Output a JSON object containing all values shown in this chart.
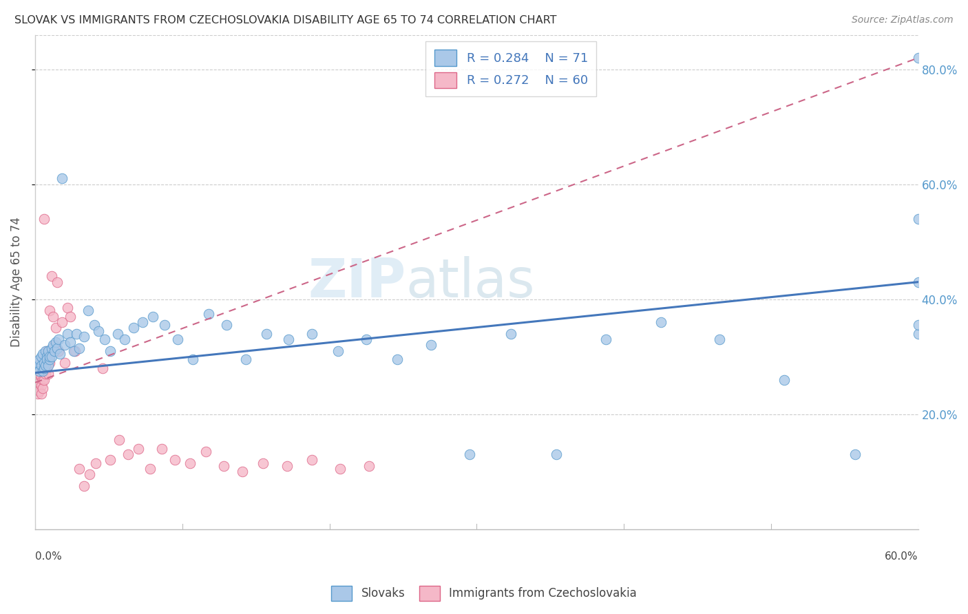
{
  "title": "SLOVAK VS IMMIGRANTS FROM CZECHOSLOVAKIA DISABILITY AGE 65 TO 74 CORRELATION CHART",
  "source": "Source: ZipAtlas.com",
  "ylabel": "Disability Age 65 to 74",
  "xlim": [
    0.0,
    0.6
  ],
  "ylim": [
    0.0,
    0.86
  ],
  "ytick_vals": [
    0.2,
    0.4,
    0.6,
    0.8
  ],
  "ytick_labels": [
    "20.0%",
    "40.0%",
    "60.0%",
    "80.0%"
  ],
  "legend_r1": "R = 0.284",
  "legend_n1": "N = 71",
  "legend_r2": "R = 0.272",
  "legend_n2": "N = 60",
  "color_slovak_fill": "#aac8e8",
  "color_slovak_edge": "#5599cc",
  "color_immig_fill": "#f5b8c8",
  "color_immig_edge": "#dd6688",
  "line_color_slovak": "#4477bb",
  "line_color_immig": "#cc6688",
  "watermark_zip": "ZIP",
  "watermark_atlas": "atlas",
  "slovak_x": [
    0.001,
    0.002,
    0.002,
    0.003,
    0.003,
    0.004,
    0.004,
    0.005,
    0.005,
    0.006,
    0.006,
    0.007,
    0.007,
    0.008,
    0.008,
    0.009,
    0.009,
    0.01,
    0.01,
    0.011,
    0.011,
    0.012,
    0.013,
    0.014,
    0.015,
    0.016,
    0.017,
    0.018,
    0.02,
    0.022,
    0.024,
    0.026,
    0.028,
    0.03,
    0.033,
    0.036,
    0.04,
    0.043,
    0.047,
    0.051,
    0.056,
    0.061,
    0.067,
    0.073,
    0.08,
    0.088,
    0.097,
    0.107,
    0.118,
    0.13,
    0.143,
    0.157,
    0.172,
    0.188,
    0.206,
    0.225,
    0.246,
    0.269,
    0.295,
    0.323,
    0.354,
    0.388,
    0.425,
    0.465,
    0.509,
    0.557,
    0.6,
    0.6,
    0.6,
    0.6,
    0.6
  ],
  "slovak_y": [
    0.285,
    0.28,
    0.29,
    0.275,
    0.295,
    0.285,
    0.3,
    0.275,
    0.305,
    0.28,
    0.29,
    0.31,
    0.285,
    0.3,
    0.295,
    0.285,
    0.31,
    0.295,
    0.3,
    0.315,
    0.3,
    0.32,
    0.31,
    0.325,
    0.315,
    0.33,
    0.305,
    0.61,
    0.32,
    0.34,
    0.325,
    0.31,
    0.34,
    0.315,
    0.335,
    0.38,
    0.355,
    0.345,
    0.33,
    0.31,
    0.34,
    0.33,
    0.35,
    0.36,
    0.37,
    0.355,
    0.33,
    0.295,
    0.375,
    0.355,
    0.295,
    0.34,
    0.33,
    0.34,
    0.31,
    0.33,
    0.295,
    0.32,
    0.13,
    0.34,
    0.13,
    0.33,
    0.36,
    0.33,
    0.26,
    0.13,
    0.82,
    0.54,
    0.34,
    0.355,
    0.43
  ],
  "immig_x": [
    0.001,
    0.001,
    0.001,
    0.001,
    0.002,
    0.002,
    0.002,
    0.002,
    0.003,
    0.003,
    0.003,
    0.004,
    0.004,
    0.004,
    0.005,
    0.005,
    0.005,
    0.006,
    0.006,
    0.006,
    0.007,
    0.007,
    0.008,
    0.008,
    0.009,
    0.009,
    0.01,
    0.01,
    0.011,
    0.012,
    0.013,
    0.014,
    0.015,
    0.016,
    0.018,
    0.02,
    0.022,
    0.024,
    0.027,
    0.03,
    0.033,
    0.037,
    0.041,
    0.046,
    0.051,
    0.057,
    0.063,
    0.07,
    0.078,
    0.086,
    0.095,
    0.105,
    0.116,
    0.128,
    0.141,
    0.155,
    0.171,
    0.188,
    0.207,
    0.227
  ],
  "immig_y": [
    0.285,
    0.275,
    0.26,
    0.245,
    0.28,
    0.265,
    0.25,
    0.235,
    0.27,
    0.255,
    0.24,
    0.265,
    0.25,
    0.235,
    0.28,
    0.26,
    0.245,
    0.54,
    0.275,
    0.26,
    0.295,
    0.27,
    0.31,
    0.28,
    0.3,
    0.27,
    0.38,
    0.29,
    0.44,
    0.37,
    0.32,
    0.35,
    0.43,
    0.31,
    0.36,
    0.29,
    0.385,
    0.37,
    0.31,
    0.105,
    0.075,
    0.095,
    0.115,
    0.28,
    0.12,
    0.155,
    0.13,
    0.14,
    0.105,
    0.14,
    0.12,
    0.115,
    0.135,
    0.11,
    0.1,
    0.115,
    0.11,
    0.12,
    0.105,
    0.11
  ],
  "slovak_trend_x": [
    0.0,
    0.6
  ],
  "slovak_trend_y": [
    0.272,
    0.43
  ],
  "immig_trend_x": [
    0.0,
    0.6
  ],
  "immig_trend_y": [
    0.255,
    0.82
  ]
}
